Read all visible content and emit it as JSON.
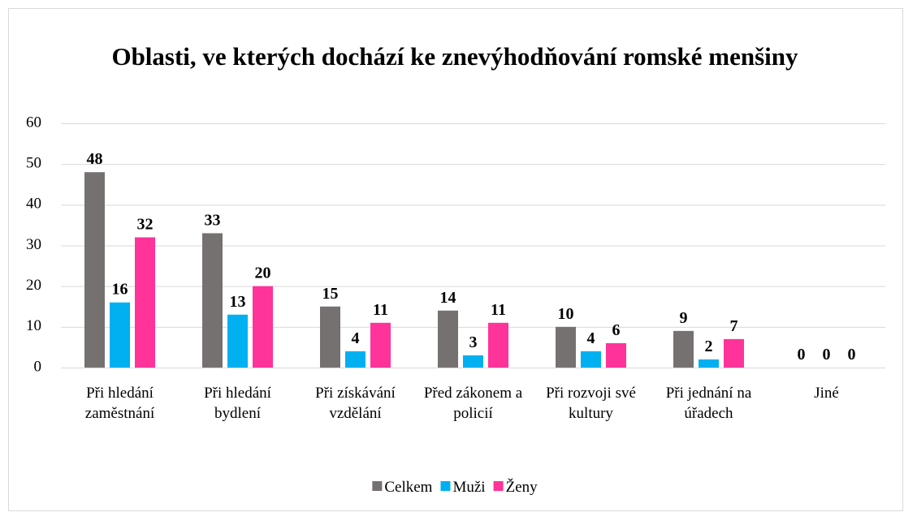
{
  "chart_data": {
    "type": "bar",
    "title": "Oblasti, ve kterých dochází ke znevýhodňování romské menšiny",
    "categories": [
      "Při hledání zaměstnání",
      "Při hledání bydlení",
      "Při získávání vzdělání",
      "Před zákonem a policií",
      "Při rozvoji své kultury",
      "Při jednání na úřadech",
      "Jiné"
    ],
    "series": [
      {
        "name": "Celkem",
        "color": "#767171",
        "values": [
          48,
          33,
          15,
          14,
          10,
          9,
          0
        ]
      },
      {
        "name": "Muži",
        "color": "#00b0f0",
        "values": [
          16,
          13,
          4,
          3,
          4,
          2,
          0
        ]
      },
      {
        "name": "Ženy",
        "color": "#ff3399",
        "values": [
          32,
          20,
          11,
          11,
          6,
          7,
          0
        ]
      }
    ],
    "ylim": [
      0,
      60
    ],
    "yticks": [
      0,
      10,
      20,
      30,
      40,
      50,
      60
    ],
    "grid": true,
    "legend": "bottom"
  }
}
